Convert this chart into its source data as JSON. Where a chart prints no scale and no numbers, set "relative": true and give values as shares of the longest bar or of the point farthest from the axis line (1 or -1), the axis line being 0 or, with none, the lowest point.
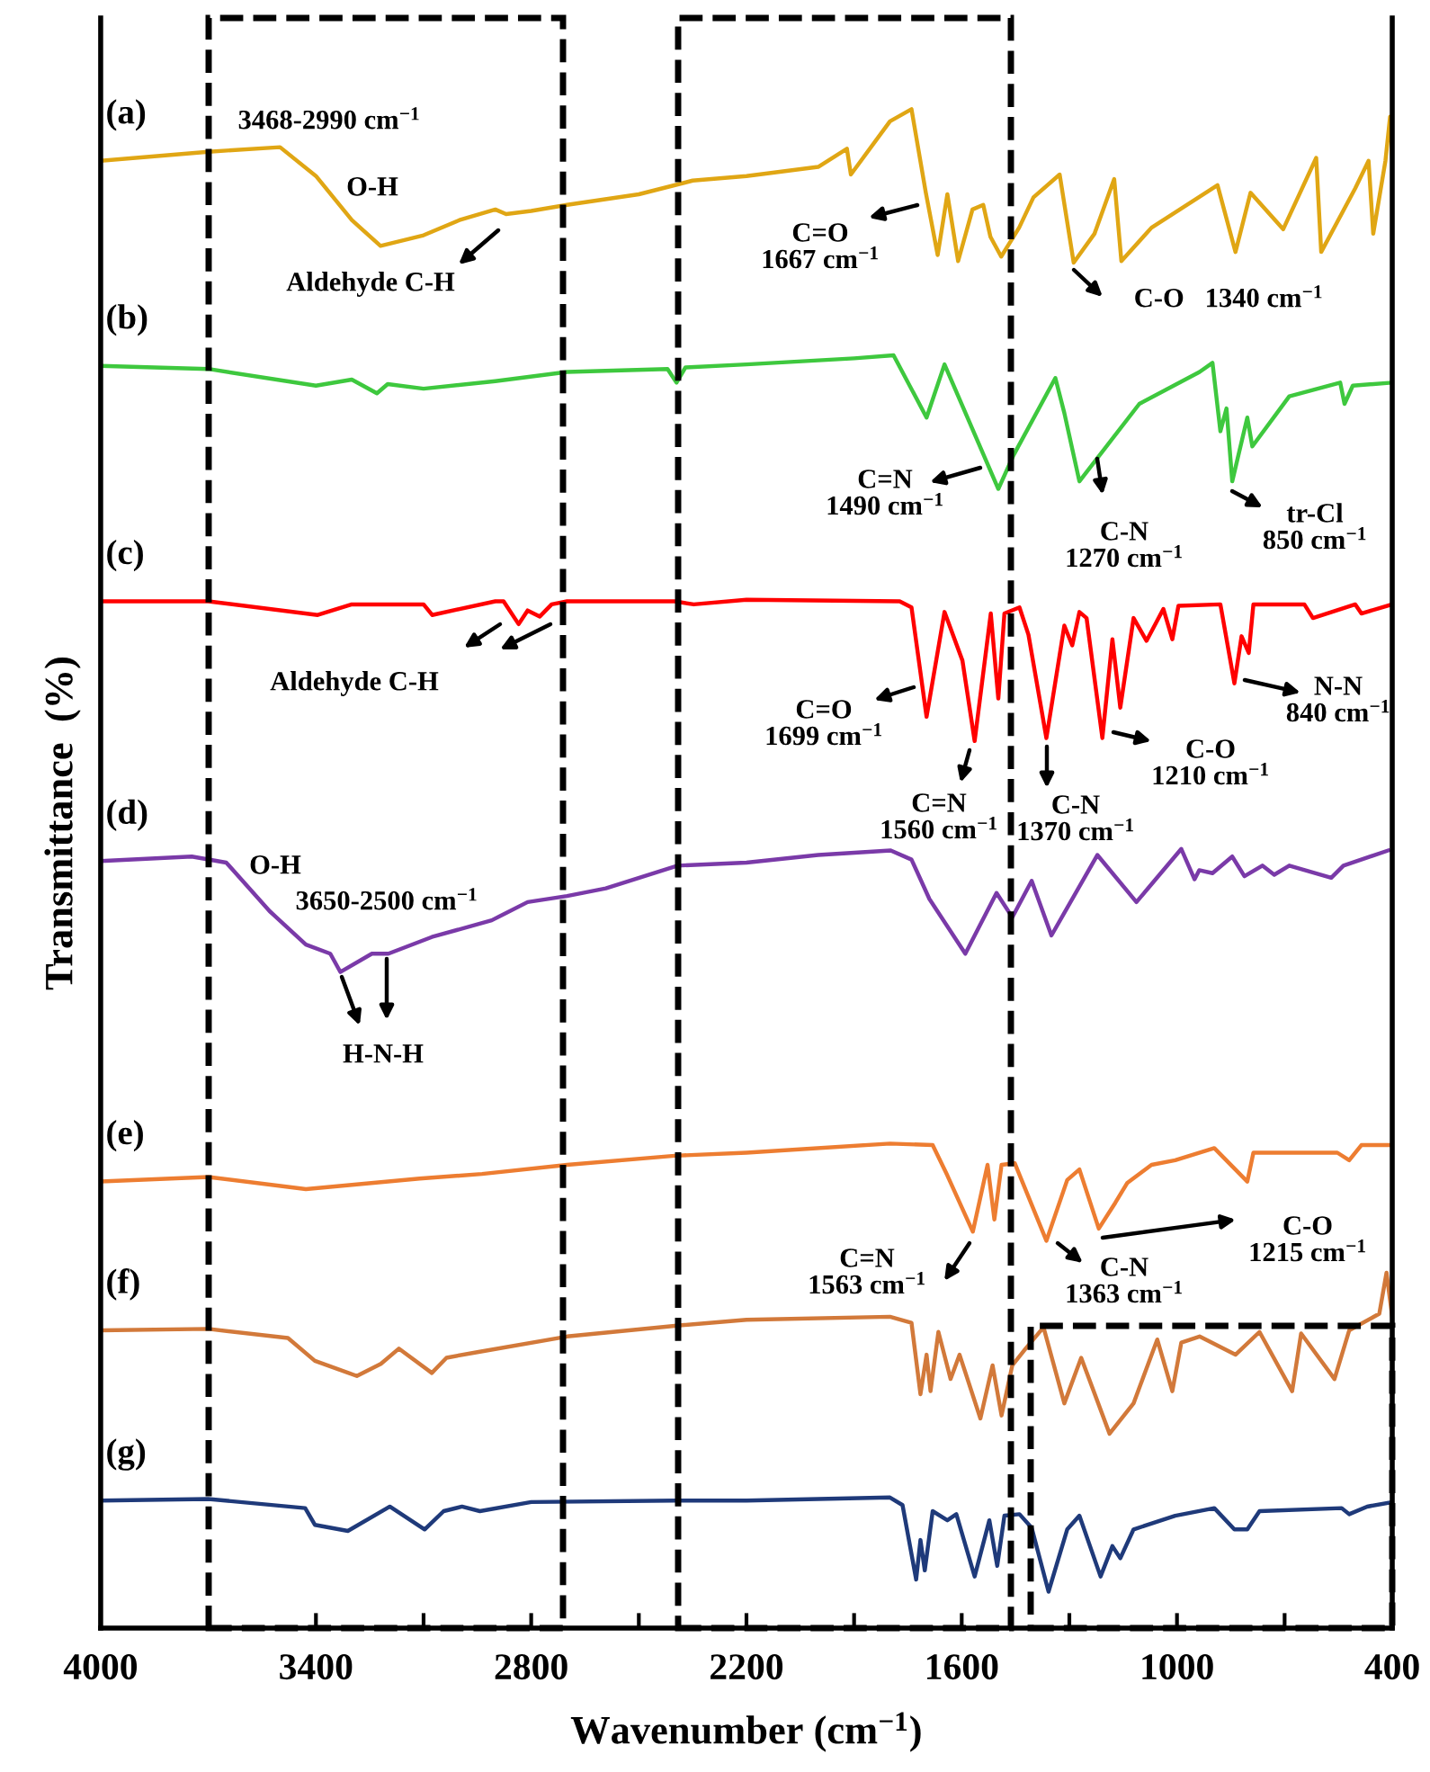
{
  "chart_data": {
    "type": "line",
    "relative": true,
    "xlabel": "Wavenumber (cm$^{−1}$)",
    "ylabel": "Transmittance  (%)",
    "xlim": [
      4000,
      400
    ],
    "xticks": [
      4000,
      {
        "value": 3700,
        "label": null
      },
      3400,
      {
        "value": 3100,
        "label": null
      },
      2800,
      {
        "value": 2500,
        "label": null
      },
      2200,
      {
        "value": 1900,
        "label": null
      },
      1600,
      {
        "value": 1300,
        "label": null
      },
      1000,
      {
        "value": 700,
        "label": null
      },
      400
    ],
    "grid": false,
    "marker": "none",
    "line_style": "solid",
    "series": [
      {
        "name": "(a)",
        "color": "#e0a614",
        "x": [
          4000,
          3700,
          3500,
          3400,
          3300,
          3220,
          3100,
          3000,
          2900,
          2870,
          2800,
          2700,
          2500,
          2350,
          2200,
          2000,
          1920,
          1909,
          1800,
          1740,
          1700,
          1667,
          1640,
          1610,
          1570,
          1540,
          1520,
          1490,
          1440,
          1400,
          1327,
          1288,
          1230,
          1175,
          1155,
          1071,
          887,
          837,
          795,
          704,
          612,
          598,
          503,
          466,
          453,
          419,
          406,
          400
        ],
        "values": [
          0.966,
          0.972,
          0.975,
          0.956,
          0.927,
          0.91,
          0.917,
          0.927,
          0.934,
          0.931,
          0.933,
          0.937,
          0.944,
          0.953,
          0.956,
          0.962,
          0.974,
          0.957,
          0.992,
          1.0,
          0.945,
          0.904,
          0.944,
          0.9,
          0.934,
          0.937,
          0.916,
          0.903,
          0.922,
          0.942,
          0.957,
          0.899,
          0.918,
          0.954,
          0.9,
          0.922,
          0.95,
          0.906,
          0.945,
          0.921,
          0.968,
          0.906,
          0.948,
          0.966,
          0.918,
          0.966,
          0.995,
          0.969
        ]
      },
      {
        "name": "(b)",
        "color": "#3ec83e",
        "x": [
          4000,
          3700,
          3400,
          3300,
          3230,
          3200,
          3100,
          2900,
          2700,
          2420,
          2395,
          2370,
          2200,
          1900,
          1790,
          1698,
          1648,
          1498,
          1456,
          1339,
          1314,
          1272,
          1105,
          937,
          901,
          879,
          862,
          846,
          804,
          790,
          687,
          545,
          533,
          510,
          400
        ],
        "values": [
          0.831,
          0.829,
          0.818,
          0.822,
          0.813,
          0.819,
          0.816,
          0.821,
          0.827,
          0.829,
          0.82,
          0.83,
          0.832,
          0.836,
          0.838,
          0.797,
          0.832,
          0.75,
          0.772,
          0.823,
          0.8,
          0.755,
          0.806,
          0.827,
          0.833,
          0.788,
          0.803,
          0.755,
          0.797,
          0.778,
          0.811,
          0.82,
          0.806,
          0.818,
          0.82
        ]
      },
      {
        "name": "(c)",
        "color": "#ff0000",
        "x": [
          4000,
          3700,
          3395,
          3300,
          3100,
          3076,
          2900,
          2877,
          2835,
          2810,
          2776,
          2743,
          2700,
          2400,
          2347,
          2200,
          1773,
          1740,
          1698,
          1648,
          1598,
          1564,
          1519,
          1498,
          1481,
          1439,
          1414,
          1364,
          1314,
          1292,
          1272,
          1252,
          1208,
          1180,
          1158,
          1121,
          1085,
          1038,
          1013,
          996,
          879,
          840,
          820,
          800,
          787,
          645,
          621,
          503,
          486,
          400
        ],
        "values": [
          0.676,
          0.676,
          0.667,
          0.674,
          0.674,
          0.667,
          0.676,
          0.676,
          0.661,
          0.67,
          0.666,
          0.674,
          0.676,
          0.676,
          0.674,
          0.677,
          0.676,
          0.672,
          0.6,
          0.669,
          0.637,
          0.584,
          0.668,
          0.612,
          0.668,
          0.672,
          0.654,
          0.586,
          0.66,
          0.647,
          0.669,
          0.665,
          0.586,
          0.651,
          0.606,
          0.665,
          0.65,
          0.671,
          0.651,
          0.673,
          0.674,
          0.622,
          0.653,
          0.642,
          0.674,
          0.674,
          0.665,
          0.674,
          0.668,
          0.674
        ]
      },
      {
        "name": "(d)",
        "color": "#7a3aa8",
        "x": [
          4000,
          3746,
          3650,
          3529,
          3428,
          3360,
          3332,
          3244,
          3198,
          3077,
          2910,
          2810,
          2700,
          2592,
          2392,
          2200,
          2000,
          1798,
          1740,
          1690,
          1590,
          1503,
          1459,
          1405,
          1350,
          1222,
          1113,
          988,
          951,
          938,
          901,
          846,
          812,
          762,
          729,
          687,
          570,
          536,
          411
        ],
        "values": [
          0.505,
          0.508,
          0.504,
          0.472,
          0.45,
          0.444,
          0.432,
          0.444,
          0.444,
          0.455,
          0.466,
          0.478,
          0.482,
          0.487,
          0.502,
          0.504,
          0.509,
          0.512,
          0.506,
          0.48,
          0.444,
          0.484,
          0.468,
          0.492,
          0.456,
          0.509,
          0.478,
          0.513,
          0.493,
          0.499,
          0.497,
          0.508,
          0.495,
          0.502,
          0.496,
          0.502,
          0.494,
          0.502,
          0.512
        ]
      },
      {
        "name": "(e)",
        "color": "#ed7d31",
        "x": [
          4000,
          3700,
          3428,
          3111,
          2937,
          2700,
          2400,
          2200,
          1800,
          1681,
          1640,
          1569,
          1528,
          1509,
          1489,
          1452,
          1364,
          1306,
          1272,
          1218,
          1172,
          1139,
          1071,
          1005,
          896,
          804,
          787,
          553,
          520,
          486,
          400
        ],
        "values": [
          0.294,
          0.297,
          0.289,
          0.296,
          0.299,
          0.305,
          0.311,
          0.313,
          0.319,
          0.318,
          0.298,
          0.261,
          0.305,
          0.269,
          0.305,
          0.306,
          0.255,
          0.295,
          0.302,
          0.263,
          0.28,
          0.293,
          0.305,
          0.308,
          0.316,
          0.294,
          0.313,
          0.313,
          0.308,
          0.318,
          0.318
        ]
      },
      {
        "name": "(f)",
        "color": "#d2793a",
        "x": [
          4000,
          3700,
          3478,
          3403,
          3286,
          3219,
          3169,
          3077,
          3036,
          2943,
          2700,
          2400,
          2200,
          1800,
          1740,
          1715,
          1698,
          1687,
          1665,
          1631,
          1606,
          1548,
          1514,
          1489,
          1459,
          1422,
          1372,
          1314,
          1267,
          1188,
          1121,
          1055,
          1013,
          988,
          937,
          837,
          770,
          679,
          654,
          561,
          520,
          436,
          416,
          400
        ],
        "values": [
          0.196,
          0.197,
          0.191,
          0.176,
          0.166,
          0.174,
          0.184,
          0.168,
          0.178,
          0.182,
          0.192,
          0.199,
          0.203,
          0.205,
          0.201,
          0.154,
          0.18,
          0.156,
          0.195,
          0.164,
          0.18,
          0.138,
          0.173,
          0.14,
          0.173,
          0.184,
          0.198,
          0.148,
          0.178,
          0.128,
          0.148,
          0.19,
          0.156,
          0.188,
          0.192,
          0.18,
          0.195,
          0.156,
          0.194,
          0.164,
          0.196,
          0.207,
          0.234,
          0.205
        ]
      },
      {
        "name": "(g)",
        "color": "#1f3a7a",
        "x": [
          4000,
          3700,
          3430,
          3403,
          3311,
          3194,
          3097,
          3044,
          2993,
          2943,
          2800,
          2400,
          2200,
          1800,
          1765,
          1727,
          1715,
          1703,
          1681,
          1640,
          1615,
          1564,
          1523,
          1501,
          1481,
          1439,
          1405,
          1358,
          1306,
          1272,
          1213,
          1180,
          1158,
          1121,
          1005,
          896,
          840,
          804,
          770,
          541,
          520,
          470,
          400
        ],
        "values": [
          0.084,
          0.085,
          0.079,
          0.068,
          0.064,
          0.08,
          0.065,
          0.077,
          0.08,
          0.077,
          0.083,
          0.084,
          0.084,
          0.086,
          0.081,
          0.032,
          0.058,
          0.038,
          0.077,
          0.071,
          0.075,
          0.034,
          0.071,
          0.041,
          0.074,
          0.075,
          0.066,
          0.024,
          0.065,
          0.074,
          0.034,
          0.054,
          0.046,
          0.065,
          0.074,
          0.079,
          0.065,
          0.065,
          0.077,
          0.079,
          0.075,
          0.08,
          0.083
        ]
      }
    ],
    "annotations": [
      "3468-2990 cm$^{−1}$",
      "O-H",
      "Aldehyde C-H",
      "C=O\n1667 cm$^{−1}$",
      "C-O   1340 cm$^{−1}$",
      "C=N\n1490 cm$^{−1}$",
      "C-N\n1270 cm$^{−1}$",
      "tr-Cl\n850 cm$^{−1}$",
      "Aldehyde C-H",
      "C=O\n1699 cm$^{−1}$",
      "C=N\n1560 cm$^{−1}$",
      "C-N\n1370 cm$^{−1}$",
      "C-O\n1210 cm$^{−1}$",
      "N-N\n840 cm$^{−1}$",
      "O-H",
      "3650-2500 cm$^{−1}$",
      "H-N-H",
      "C=N\n1563 cm$^{−1}$",
      "C-N\n1363 cm$^{−1}$",
      "C-O\n1215 cm$^{−1}$"
    ]
  }
}
